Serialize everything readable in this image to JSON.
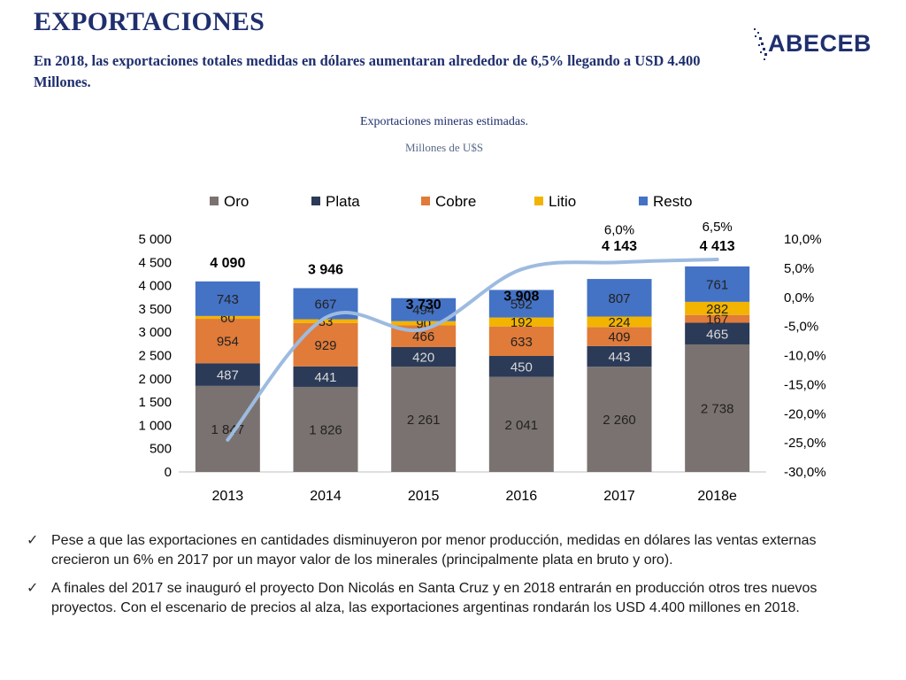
{
  "header": {
    "title": "EXPORTACIONES",
    "subtitle": "En 2018, las exportaciones totales medidas en dólares aumentaran alrededor de 6,5% llegando a USD 4.400 Millones.",
    "logo_text": "ABECEB"
  },
  "chart_data": {
    "type": "bar",
    "stacked": true,
    "title": "Exportaciones mineras estimadas.",
    "subtitle": "Millones de U$S",
    "categories": [
      "2013",
      "2014",
      "2015",
      "2016",
      "2017",
      "2018e"
    ],
    "series": [
      {
        "name": "Oro",
        "color": "#7a7270",
        "values": [
          1847,
          1826,
          2261,
          2041,
          2260,
          2738
        ],
        "labels": [
          "1 847",
          "1 826",
          "2 261",
          "2 041",
          "2 260",
          "2 738"
        ]
      },
      {
        "name": "Plata",
        "color": "#2b3a57",
        "values": [
          487,
          441,
          420,
          450,
          443,
          465
        ],
        "labels": [
          "487",
          "441",
          "420",
          "450",
          "443",
          "465"
        ]
      },
      {
        "name": "Cobre",
        "color": "#e07b3a",
        "values": [
          954,
          929,
          466,
          633,
          409,
          167
        ],
        "labels": [
          "954",
          "929",
          "466",
          "633",
          "409",
          "167"
        ]
      },
      {
        "name": "Litio",
        "color": "#f2b400",
        "values": [
          60,
          83,
          90,
          192,
          224,
          282
        ],
        "labels": [
          "60",
          "83",
          "90",
          "192",
          "224",
          "282"
        ]
      },
      {
        "name": "Resto",
        "color": "#4472c4",
        "values": [
          743,
          667,
          494,
          592,
          807,
          761
        ],
        "labels": [
          "743",
          "667",
          "494",
          "592",
          "807",
          "761"
        ]
      }
    ],
    "totals": [
      4090,
      3946,
      3730,
      3908,
      4143,
      4413
    ],
    "total_labels": [
      "4 090",
      "3 946",
      "3 730",
      "3 908",
      "4 143",
      "4 413"
    ],
    "growth_line": {
      "color": "#9dbbe0",
      "values": [
        -24.5,
        -3.5,
        -5.5,
        4.8,
        6.0,
        6.5
      ],
      "point_labels": [
        "",
        "",
        "",
        "",
        "6,0%",
        "6,5%"
      ]
    },
    "y_left": {
      "range": [
        0,
        5000
      ],
      "ticks": [
        "0",
        "500",
        "1 000",
        "1 500",
        "2 000",
        "2 500",
        "3 000",
        "3 500",
        "4 000",
        "4 500",
        "5 000"
      ]
    },
    "y_right": {
      "range": [
        -30,
        10
      ],
      "ticks": [
        "-30,0%",
        "-25,0%",
        "-20,0%",
        "-15,0%",
        "-10,0%",
        "-5,0%",
        "0,0%",
        "5,0%",
        "10,0%"
      ]
    },
    "legend_position": "top"
  },
  "bullets": [
    "Pese a que las exportaciones en cantidades disminuyeron por menor producción, medidas en dólares las ventas externas crecieron un 6% en 2017 por un mayor valor de los minerales (principalmente plata en bruto y oro).",
    "A finales del  2017 se inauguró el proyecto Don Nicolás en Santa Cruz y en 2018 entrarán en producción otros tres nuevos proyectos. Con el escenario de precios al alza, las exportaciones argentinas rondarán los USD 4.400 millones en 2018."
  ],
  "icons": {
    "bullet": "check-icon",
    "logo": "abeceb-logo"
  }
}
